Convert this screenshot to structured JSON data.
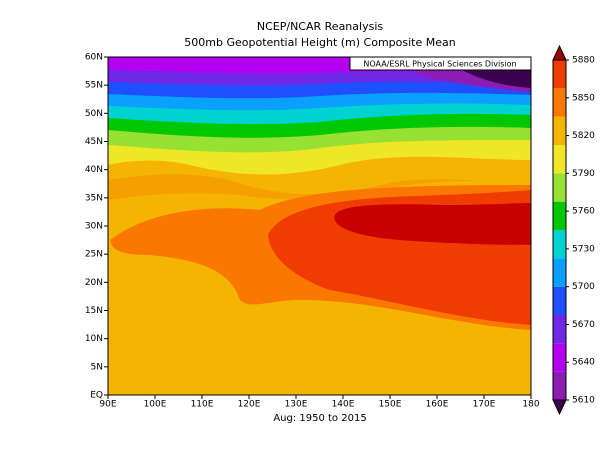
{
  "title": "NCEP/NCAR Reanalysis",
  "subtitle": "500mb Geopotential Height (m) Composite Mean",
  "credit": "NOAA/ESRL Physical Sciences Division",
  "period": "Aug: 1950 to 2015",
  "map": {
    "lon_ticks": [
      {
        "value": 90,
        "label": "90E"
      },
      {
        "value": 100,
        "label": "100E"
      },
      {
        "value": 110,
        "label": "110E"
      },
      {
        "value": 120,
        "label": "120E"
      },
      {
        "value": 130,
        "label": "130E"
      },
      {
        "value": 140,
        "label": "140E"
      },
      {
        "value": 150,
        "label": "150E"
      },
      {
        "value": 160,
        "label": "160E"
      },
      {
        "value": 170,
        "label": "170E"
      },
      {
        "value": 180,
        "label": "180"
      }
    ],
    "lat_ticks": [
      {
        "value": 0,
        "label": "EQ"
      },
      {
        "value": 5,
        "label": "5N"
      },
      {
        "value": 10,
        "label": "10N"
      },
      {
        "value": 15,
        "label": "15N"
      },
      {
        "value": 20,
        "label": "20N"
      },
      {
        "value": 25,
        "label": "25N"
      },
      {
        "value": 30,
        "label": "30N"
      },
      {
        "value": 35,
        "label": "35N"
      },
      {
        "value": 40,
        "label": "40N"
      },
      {
        "value": 45,
        "label": "45N"
      },
      {
        "value": 50,
        "label": "50N"
      },
      {
        "value": 55,
        "label": "55N"
      },
      {
        "value": 60,
        "label": "60N"
      }
    ]
  },
  "colorbar": {
    "levels": [
      5610,
      5640,
      5670,
      5700,
      5730,
      5760,
      5790,
      5820,
      5850,
      5880
    ],
    "colors": [
      "#3c0050",
      "#8c1cb4",
      "#b400f0",
      "#6e28e6",
      "#1e50ff",
      "#0aa0ff",
      "#00d2d2",
      "#00c800",
      "#96e132",
      "#f0e628",
      "#f5b400",
      "#fa7800",
      "#f03c00",
      "#a00000"
    ]
  }
}
